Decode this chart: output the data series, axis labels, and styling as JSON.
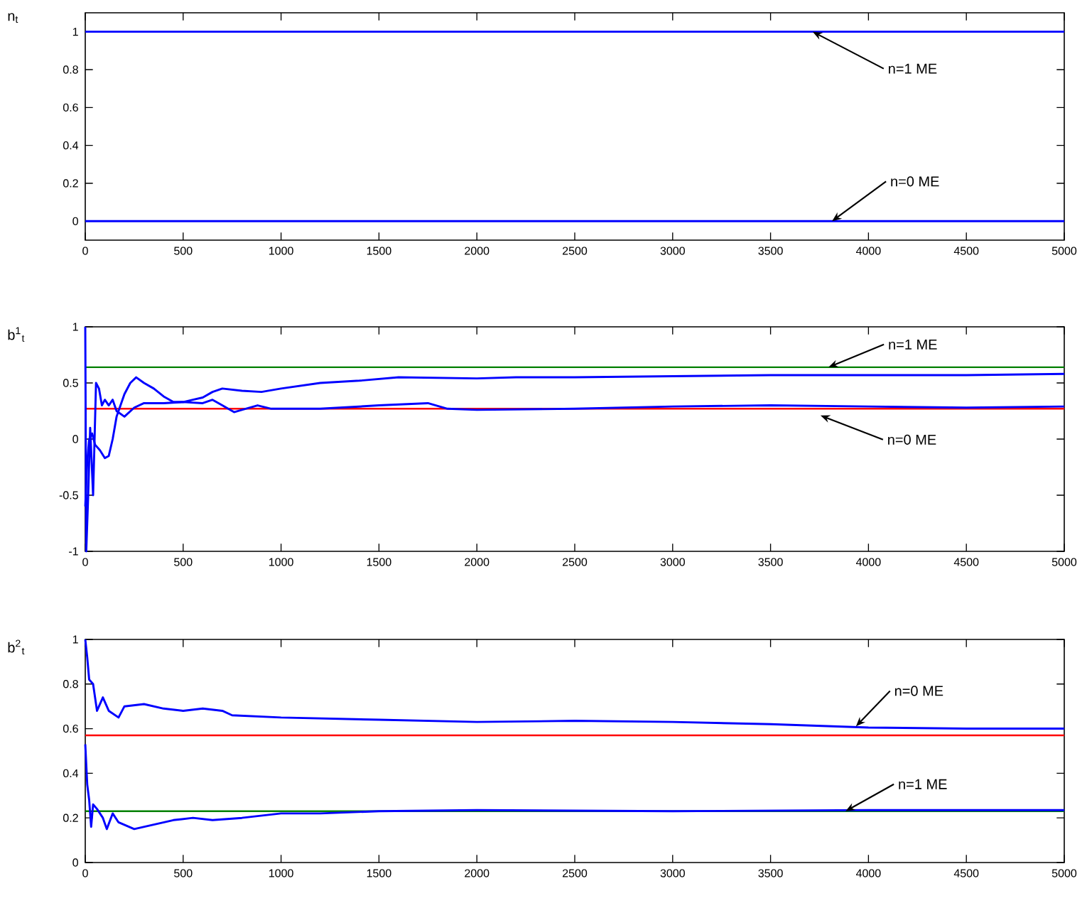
{
  "chart_data": [
    {
      "type": "line",
      "ylabel": "n$_{t}$",
      "xlim": [
        0,
        5000
      ],
      "xticks": [
        0,
        500,
        1000,
        1500,
        2000,
        2500,
        3000,
        3500,
        4000,
        4500,
        5000
      ],
      "ylim": [
        -0.1,
        1.1
      ],
      "yticks": [
        0,
        0.2,
        0.4,
        0.6,
        0.8,
        1
      ],
      "series": [
        {
          "color": "#0000ff",
          "x": [
            0,
            5000
          ],
          "values": [
            1,
            1
          ]
        },
        {
          "color": "#0000ff",
          "x": [
            0,
            5000
          ],
          "values": [
            0,
            0
          ]
        }
      ],
      "annotations": [
        {
          "text": "n=1 ME",
          "x": 3715,
          "y": 1
        },
        {
          "text": "n=0 ME",
          "x": 3814,
          "y": 0
        }
      ]
    },
    {
      "type": "line",
      "ylabel": "b$^{1}$$_{t}$",
      "xlim": [
        0,
        5000
      ],
      "xticks": [
        0,
        500,
        1000,
        1500,
        2000,
        2500,
        3000,
        3500,
        4000,
        4500,
        5000
      ],
      "ylim": [
        -1,
        1
      ],
      "yticks": [
        -1,
        -0.5,
        0,
        0.5,
        1
      ],
      "series": [
        {
          "color": "#0000ff",
          "x": [
            0,
            10,
            20,
            35,
            50,
            75,
            100,
            120,
            140,
            160,
            180,
            200,
            230,
            260,
            300,
            350,
            400,
            450,
            500,
            550,
            600,
            650,
            700,
            800,
            900,
            1000,
            1200,
            1400,
            1600,
            2000,
            2200,
            2500,
            3000,
            3500,
            4000,
            4500,
            5000
          ],
          "values": [
            -0.6,
            -0.2,
            0,
            0.05,
            -0.05,
            -0.1,
            -0.17,
            -0.15,
            0,
            0.2,
            0.3,
            0.4,
            0.5,
            0.55,
            0.5,
            0.45,
            0.38,
            0.33,
            0.33,
            0.35,
            0.37,
            0.42,
            0.45,
            0.43,
            0.42,
            0.45,
            0.5,
            0.52,
            0.55,
            0.54,
            0.55,
            0.55,
            0.56,
            0.57,
            0.57,
            0.57,
            0.58
          ]
        },
        {
          "color": "#0000ff",
          "x": [
            0,
            5,
            15,
            25,
            40,
            55,
            70,
            85,
            100,
            120,
            140,
            160,
            200,
            250,
            300,
            400,
            500,
            600,
            650,
            700,
            760,
            800,
            880,
            950,
            1000,
            1200,
            1500,
            1750,
            1850,
            2000,
            2500,
            3000,
            3500,
            4000,
            4500,
            5000
          ],
          "values": [
            1,
            -1,
            -0.5,
            0.1,
            -0.5,
            0.5,
            0.45,
            0.3,
            0.35,
            0.3,
            0.35,
            0.25,
            0.2,
            0.28,
            0.32,
            0.32,
            0.33,
            0.32,
            0.35,
            0.3,
            0.24,
            0.26,
            0.3,
            0.27,
            0.27,
            0.27,
            0.3,
            0.32,
            0.27,
            0.26,
            0.27,
            0.29,
            0.3,
            0.29,
            0.28,
            0.29
          ]
        }
      ],
      "ref_lines": [
        {
          "axis": "y",
          "value": 0.64,
          "color": "#008000"
        },
        {
          "axis": "y",
          "value": 0.27,
          "color": "#ff0000"
        }
      ],
      "annotations": [
        {
          "text": "n=1 ME",
          "x": 3796,
          "y": 0.64
        },
        {
          "text": "n=0 ME",
          "x": 3755,
          "y": 0.21
        }
      ]
    },
    {
      "type": "line",
      "ylabel": "b$^{2}$$_{t}$",
      "xlim": [
        0,
        5000
      ],
      "xticks": [
        0,
        500,
        1000,
        1500,
        2000,
        2500,
        3000,
        3500,
        4000,
        4500,
        5000
      ],
      "ylim": [
        0,
        1
      ],
      "yticks": [
        0,
        0.2,
        0.4,
        0.6,
        0.8,
        1
      ],
      "series": [
        {
          "color": "#0000ff",
          "x": [
            0,
            10,
            20,
            40,
            60,
            80,
            90,
            120,
            170,
            200,
            300,
            400,
            500,
            600,
            700,
            750,
            1000,
            1500,
            2000,
            2500,
            3000,
            3500,
            4000,
            4500,
            5000
          ],
          "values": [
            1,
            0.92,
            0.82,
            0.8,
            0.68,
            0.72,
            0.74,
            0.68,
            0.65,
            0.7,
            0.71,
            0.69,
            0.68,
            0.69,
            0.68,
            0.66,
            0.65,
            0.64,
            0.63,
            0.635,
            0.63,
            0.62,
            0.605,
            0.6,
            0.6
          ]
        },
        {
          "color": "#0000ff",
          "x": [
            0,
            10,
            20,
            30,
            40,
            60,
            90,
            110,
            140,
            170,
            250,
            350,
            450,
            550,
            650,
            800,
            1000,
            1200,
            1500,
            2000,
            3000,
            4000,
            5000
          ],
          "values": [
            0.53,
            0.35,
            0.28,
            0.16,
            0.26,
            0.24,
            0.2,
            0.15,
            0.22,
            0.18,
            0.15,
            0.17,
            0.19,
            0.2,
            0.19,
            0.2,
            0.22,
            0.22,
            0.23,
            0.235,
            0.23,
            0.235,
            0.235
          ]
        }
      ],
      "ref_lines": [
        {
          "axis": "y",
          "value": 0.57,
          "color": "#ff0000"
        },
        {
          "axis": "y",
          "value": 0.23,
          "color": "#008000"
        }
      ],
      "annotations": [
        {
          "text": "n=0 ME",
          "x": 3936,
          "y": 0.61
        },
        {
          "text": "n=1 ME",
          "x": 3883,
          "y": 0.23
        }
      ]
    }
  ]
}
